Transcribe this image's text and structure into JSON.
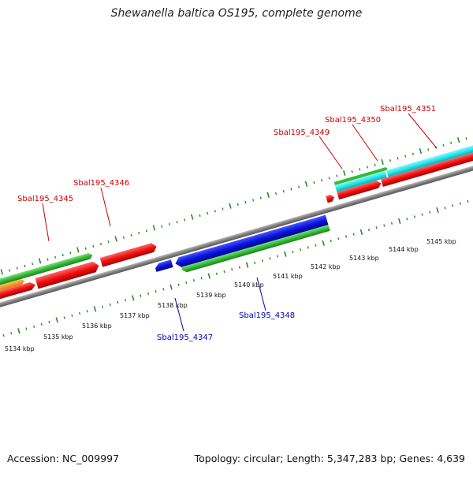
{
  "title": "Shewanella baltica OS195, complete genome",
  "footer": {
    "accession": "Accession: NC_009997",
    "summary": "Topology: circular; Length: 5,347,283 bp; Genes: 4,639"
  },
  "axis_labels": [
    "5134 kbp",
    "5135 kbp",
    "5136 kbp",
    "5137 kbp",
    "5138 kbp",
    "5139 kbp",
    "5140 kbp",
    "5141 kbp",
    "5142 kbp",
    "5143 kbp",
    "5144 kbp",
    "5145 kbp"
  ],
  "gene_labels": [
    {
      "name": "Sbal195_4345",
      "strand": "forward"
    },
    {
      "name": "Sbal195_4346",
      "strand": "forward"
    },
    {
      "name": "Sbal195_4347",
      "strand": "reverse"
    },
    {
      "name": "Sbal195_4348",
      "strand": "reverse"
    },
    {
      "name": "Sbal195_4349",
      "strand": "forward"
    },
    {
      "name": "Sbal195_4350",
      "strand": "forward"
    },
    {
      "name": "Sbal195_4351",
      "strand": "forward"
    }
  ],
  "colors": {
    "forward_label": "#cc0000",
    "reverse_label": "#0000bb",
    "cds": "#ee1111",
    "gene": "#0a14dd",
    "rrna": "#33bb33",
    "trna": "#22e8ee",
    "misc": "#ff9900",
    "backbone": "#808080",
    "ticks": "#2a8a2a"
  }
}
